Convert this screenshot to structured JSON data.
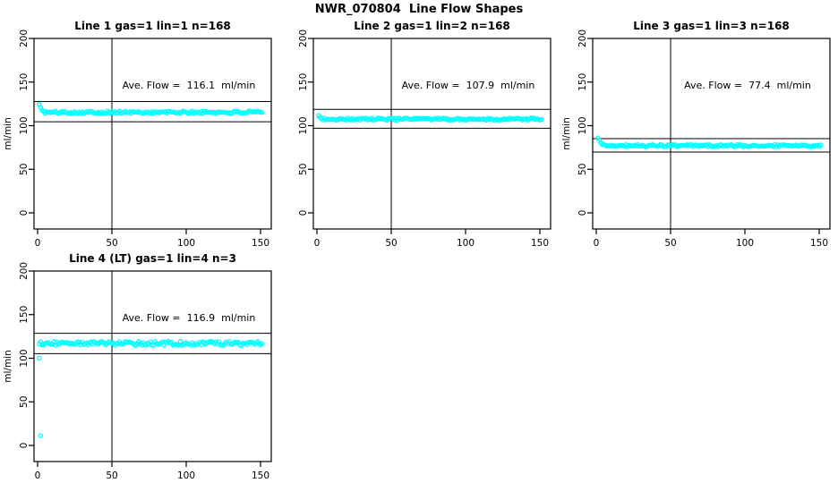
{
  "figure": {
    "main_title": "NWR_070804  Line Flow Shapes",
    "background": "#FFFFFF",
    "series_color": "#00FFFF",
    "axis_color": "#000000"
  },
  "chart_data": [
    {
      "type": "scatter",
      "title": "Line 1 gas=1 lin=1 n=168",
      "line": 1,
      "gas": 1,
      "lin": 1,
      "n": 168,
      "annotation": "Ave. Flow =  116.1  ml/min",
      "ave_flow_ml_min": 116.1,
      "ylabel": "ml/min",
      "xticks": [
        0,
        50,
        100,
        150
      ],
      "yticks": [
        0,
        50,
        100,
        150,
        200
      ],
      "vline_x": 50,
      "hlines": [
        127.7,
        104.5
      ],
      "series": {
        "x_start": 1,
        "x_end": 151,
        "baseline": 115.3,
        "noise": 1.4,
        "transient": [
          124.5,
          121,
          118,
          116.3
        ],
        "seed": 101
      },
      "extra_points": []
    },
    {
      "type": "scatter",
      "title": "Line 2 gas=1 lin=2 n=168",
      "line": 2,
      "gas": 1,
      "lin": 2,
      "n": 168,
      "annotation": "Ave. Flow =  107.9  ml/min",
      "ave_flow_ml_min": 107.9,
      "ylabel": "",
      "xticks": [
        0,
        50,
        100,
        150
      ],
      "yticks": [
        0,
        50,
        100,
        150,
        200
      ],
      "vline_x": 50,
      "hlines": [
        118.7,
        97.1
      ],
      "series": {
        "x_start": 1,
        "x_end": 151,
        "baseline": 107.5,
        "noise": 1.3,
        "transient": [
          111.5,
          109.5,
          108.2
        ],
        "seed": 202
      },
      "extra_points": []
    },
    {
      "type": "scatter",
      "title": "Line 3 gas=1 lin=3 n=168",
      "line": 3,
      "gas": 1,
      "lin": 3,
      "n": 168,
      "annotation": "Ave. Flow =  77.4  ml/min",
      "ave_flow_ml_min": 77.4,
      "ylabel": "ml/min",
      "xticks": [
        0,
        50,
        100,
        150
      ],
      "yticks": [
        0,
        50,
        100,
        150,
        200
      ],
      "vline_x": 50,
      "hlines": [
        85.1,
        69.7
      ],
      "series": {
        "x_start": 1,
        "x_end": 151,
        "baseline": 77.0,
        "noise": 1.3,
        "transient": [
          86,
          83.5,
          80.5,
          78.5
        ],
        "seed": 303
      },
      "extra_points": []
    },
    {
      "type": "scatter",
      "title": "Line 4 (LT) gas=1 lin=4 n=3",
      "line": 4,
      "line_note": "LT",
      "gas": 1,
      "lin": 4,
      "n": 3,
      "annotation": "Ave. Flow =  116.9  ml/min",
      "ave_flow_ml_min": 116.9,
      "ylabel": "ml/min",
      "xticks": [
        0,
        50,
        100,
        150
      ],
      "yticks": [
        0,
        50,
        100,
        150,
        200
      ],
      "vline_x": 50,
      "hlines": [
        128.6,
        105.2
      ],
      "series": {
        "x_start": 1,
        "x_end": 151,
        "baseline": 117.0,
        "noise": 2.4,
        "transient": [],
        "seed": 404
      },
      "extra_points": [
        [
          1,
          100
        ],
        [
          2,
          11
        ]
      ]
    }
  ]
}
